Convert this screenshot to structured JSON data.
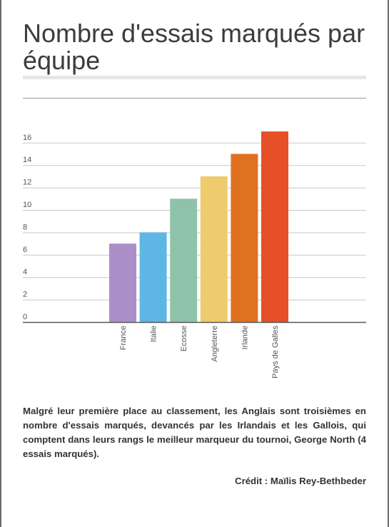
{
  "page": {
    "title": "Nombre d'essais marqués par équipe",
    "caption": "Malgré leur première place au classement, les Anglais sont troisièmes en nombre d'essais marqués, devancés par les Irlandais et les Gallois, qui comptent dans leurs rangs le meilleur marqueur du tournoi, George North (4 essais marqués).",
    "credit_label": "Crédit :",
    "credit_name": "Maïlis Rey-Bethbeder"
  },
  "chart_data": {
    "type": "bar",
    "title": "Nombre d'essais marqués par équipe",
    "xlabel": "",
    "ylabel": "",
    "categories": [
      "France",
      "Italie",
      "Ecosse",
      "Angleterre",
      "Irlande",
      "Pays de Galles"
    ],
    "values": [
      7,
      8,
      11,
      13,
      15,
      17
    ],
    "colors": [
      "#ab8fc8",
      "#5db6e4",
      "#8fc3a9",
      "#eecb6c",
      "#e07120",
      "#e55027"
    ],
    "yticks": [
      "0",
      "2",
      "4",
      "6",
      "8",
      "10",
      "12",
      "14",
      "16"
    ],
    "ylim": [
      0,
      18
    ],
    "grid": true,
    "legend": "none"
  }
}
